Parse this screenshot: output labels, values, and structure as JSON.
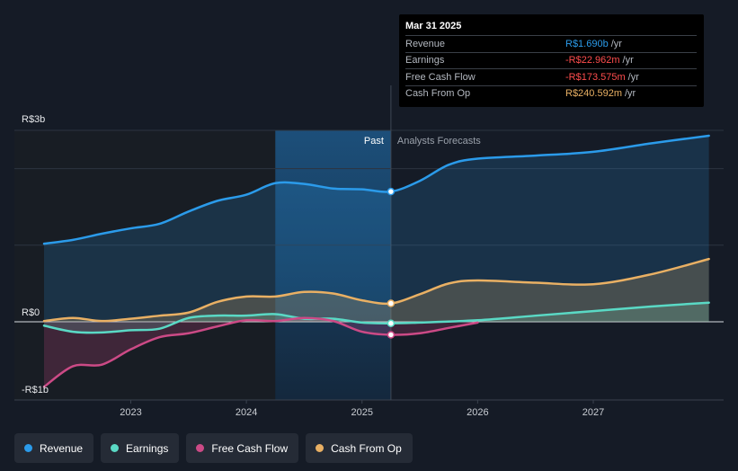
{
  "tooltip": {
    "date": "Mar 31 2025",
    "rows": [
      {
        "label": "Revenue",
        "value": "R$1.690b",
        "unit": "/yr",
        "color": "#2b9bea"
      },
      {
        "label": "Earnings",
        "value": "-R$22.962m",
        "unit": "/yr",
        "color": "#ff4d4d"
      },
      {
        "label": "Free Cash Flow",
        "value": "-R$173.575m",
        "unit": "/yr",
        "color": "#ff4d4d"
      },
      {
        "label": "Cash From Op",
        "value": "R$240.592m",
        "unit": "/yr",
        "color": "#e9b064"
      }
    ]
  },
  "legend": [
    {
      "label": "Revenue",
      "color": "#2b9bea"
    },
    {
      "label": "Earnings",
      "color": "#5ad9c5"
    },
    {
      "label": "Free Cash Flow",
      "color": "#cc4a86"
    },
    {
      "label": "Cash From Op",
      "color": "#e9b064"
    }
  ],
  "chart_data": {
    "type": "line",
    "title": "",
    "xlabel": "",
    "ylabel": "",
    "y_unit": "R$ billions",
    "xlim": [
      2022.2,
      2028.0
    ],
    "ylim": [
      -1.0,
      2.5
    ],
    "past_end": 2025.25,
    "highlight_start": 2024.25,
    "period_labels": {
      "past": "Past",
      "forecast": "Analysts Forecasts"
    },
    "y_ticks": [
      {
        "value": 2.5,
        "label": "R$3b"
      },
      {
        "value": 0,
        "label": "R$0"
      },
      {
        "value": -0.9,
        "label": "-R$1b"
      }
    ],
    "y_gridlines": [
      2.5,
      2.0,
      1.0,
      0
    ],
    "x_ticks": [
      {
        "value": 2023.0,
        "label": "2023"
      },
      {
        "value": 2024.0,
        "label": "2024"
      },
      {
        "value": 2025.0,
        "label": "2025"
      },
      {
        "value": 2026.0,
        "label": "2026"
      },
      {
        "value": 2027.0,
        "label": "2027"
      }
    ],
    "series": [
      {
        "name": "Revenue",
        "color": "#2b9bea",
        "fill": true,
        "points": [
          [
            2022.25,
            1.02
          ],
          [
            2022.5,
            1.07
          ],
          [
            2022.75,
            1.15
          ],
          [
            2023.0,
            1.22
          ],
          [
            2023.25,
            1.28
          ],
          [
            2023.5,
            1.44
          ],
          [
            2023.75,
            1.58
          ],
          [
            2024.0,
            1.66
          ],
          [
            2024.25,
            1.81
          ],
          [
            2024.5,
            1.8
          ],
          [
            2024.75,
            1.74
          ],
          [
            2025.0,
            1.73
          ],
          [
            2025.25,
            1.7
          ],
          [
            2025.5,
            1.84
          ],
          [
            2025.75,
            2.05
          ],
          [
            2026.0,
            2.13
          ],
          [
            2026.5,
            2.17
          ],
          [
            2027.0,
            2.22
          ],
          [
            2027.5,
            2.33
          ],
          [
            2028.0,
            2.43
          ]
        ]
      },
      {
        "name": "Earnings",
        "color": "#5ad9c5",
        "fill": true,
        "points": [
          [
            2022.25,
            -0.05
          ],
          [
            2022.5,
            -0.13
          ],
          [
            2022.75,
            -0.14
          ],
          [
            2023.0,
            -0.11
          ],
          [
            2023.25,
            -0.09
          ],
          [
            2023.5,
            0.05
          ],
          [
            2023.75,
            0.08
          ],
          [
            2024.0,
            0.08
          ],
          [
            2024.25,
            0.1
          ],
          [
            2024.5,
            0.04
          ],
          [
            2024.75,
            0.04
          ],
          [
            2025.0,
            -0.01
          ],
          [
            2025.25,
            -0.02
          ],
          [
            2025.5,
            -0.01
          ],
          [
            2026.0,
            0.02
          ],
          [
            2026.5,
            0.08
          ],
          [
            2027.0,
            0.14
          ],
          [
            2027.5,
            0.2
          ],
          [
            2028.0,
            0.25
          ]
        ]
      },
      {
        "name": "Free Cash Flow",
        "color": "#cc4a86",
        "fill": true,
        "points": [
          [
            2022.25,
            -0.85
          ],
          [
            2022.5,
            -0.58
          ],
          [
            2022.75,
            -0.56
          ],
          [
            2023.0,
            -0.36
          ],
          [
            2023.25,
            -0.2
          ],
          [
            2023.5,
            -0.15
          ],
          [
            2023.75,
            -0.06
          ],
          [
            2024.0,
            0.02
          ],
          [
            2024.25,
            0.01
          ],
          [
            2024.5,
            0.05
          ],
          [
            2024.75,
            0.01
          ],
          [
            2025.0,
            -0.13
          ],
          [
            2025.25,
            -0.17
          ],
          [
            2025.5,
            -0.15
          ],
          [
            2025.75,
            -0.08
          ],
          [
            2026.0,
            -0.01
          ]
        ]
      },
      {
        "name": "Cash From Op",
        "color": "#e9b064",
        "fill": true,
        "points": [
          [
            2022.25,
            0.01
          ],
          [
            2022.5,
            0.05
          ],
          [
            2022.75,
            0.01
          ],
          [
            2023.0,
            0.04
          ],
          [
            2023.25,
            0.08
          ],
          [
            2023.5,
            0.12
          ],
          [
            2023.75,
            0.26
          ],
          [
            2024.0,
            0.33
          ],
          [
            2024.25,
            0.33
          ],
          [
            2024.5,
            0.39
          ],
          [
            2024.75,
            0.37
          ],
          [
            2025.0,
            0.28
          ],
          [
            2025.25,
            0.24
          ],
          [
            2025.5,
            0.36
          ],
          [
            2025.75,
            0.5
          ],
          [
            2026.0,
            0.54
          ],
          [
            2026.5,
            0.51
          ],
          [
            2027.0,
            0.49
          ],
          [
            2027.5,
            0.62
          ],
          [
            2028.0,
            0.82
          ]
        ]
      }
    ]
  }
}
